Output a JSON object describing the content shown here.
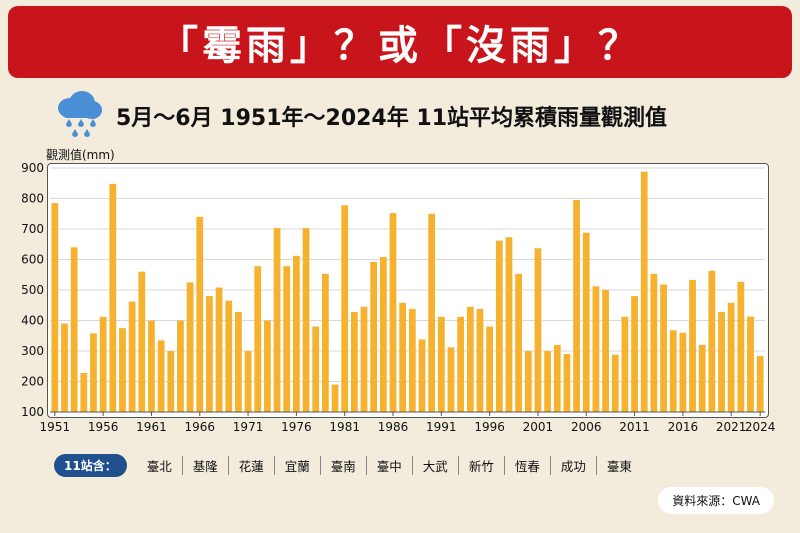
{
  "banner": {
    "title": "「霉雨」？或「沒雨」？"
  },
  "header": {
    "subtitle": "5月～6月  1951年～2024年  11站平均累積雨量觀測值",
    "icon": "rain-cloud-icon"
  },
  "legend": {
    "badge": "11站含：",
    "stations": [
      "臺北",
      "基隆",
      "花蓮",
      "宜蘭",
      "臺南",
      "臺中",
      "大武",
      "新竹",
      "恆春",
      "成功",
      "臺東"
    ]
  },
  "source": "資料來源：CWA",
  "colors": {
    "bar": "#f6b12f",
    "banner": "#c8151c",
    "badge": "#1f4f8c"
  },
  "chart_data": {
    "type": "bar",
    "ylabel": "觀測值(mm)",
    "xlabel": "",
    "ylim": [
      100,
      900
    ],
    "yticks": [
      100,
      200,
      300,
      400,
      500,
      600,
      700,
      800,
      900
    ],
    "xtick_labels": [
      "1951",
      "1956",
      "1961",
      "1966",
      "1971",
      "1976",
      "1981",
      "1986",
      "1991",
      "1996",
      "2001",
      "2006",
      "2011",
      "2016",
      "2021",
      "2024"
    ],
    "grid": true,
    "x": [
      1951,
      1952,
      1953,
      1954,
      1955,
      1956,
      1957,
      1958,
      1959,
      1960,
      1961,
      1962,
      1963,
      1964,
      1965,
      1966,
      1967,
      1968,
      1969,
      1970,
      1971,
      1972,
      1973,
      1974,
      1975,
      1976,
      1977,
      1978,
      1979,
      1980,
      1981,
      1982,
      1983,
      1984,
      1985,
      1986,
      1987,
      1988,
      1989,
      1990,
      1991,
      1992,
      1993,
      1994,
      1995,
      1996,
      1997,
      1998,
      1999,
      2000,
      2001,
      2002,
      2003,
      2004,
      2005,
      2006,
      2007,
      2008,
      2009,
      2010,
      2011,
      2012,
      2013,
      2014,
      2015,
      2016,
      2017,
      2018,
      2019,
      2020,
      2021,
      2022,
      2023,
      2024
    ],
    "values": [
      785,
      390,
      640,
      228,
      358,
      412,
      848,
      375,
      462,
      560,
      400,
      335,
      300,
      400,
      525,
      740,
      480,
      508,
      465,
      428,
      300,
      578,
      400,
      703,
      578,
      612,
      703,
      380,
      553,
      190,
      778,
      428,
      445,
      592,
      608,
      752,
      458,
      438,
      338,
      750,
      412,
      312,
      412,
      445,
      438,
      380,
      662,
      673,
      553,
      300,
      637,
      300,
      320,
      290,
      795,
      688,
      512,
      500,
      288,
      412,
      480,
      888,
      553,
      518,
      368,
      360,
      533,
      320,
      563,
      428,
      458,
      527,
      413,
      283
    ]
  }
}
